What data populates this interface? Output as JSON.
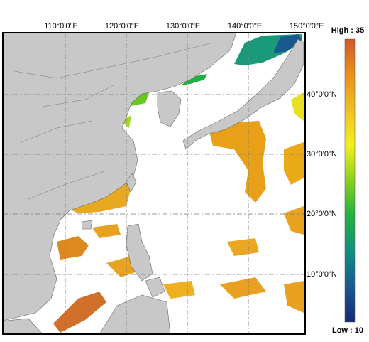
{
  "map": {
    "lon_labels": [
      "110°0'0\"E",
      "120°0'0\"E",
      "130°0'0\"E",
      "140°0'0\"E",
      "150°0'0\"E"
    ],
    "lat_labels": [
      "40°0'0\"N",
      "30°0'0\"N",
      "20°0'0\"N",
      "10°0'0\"N"
    ]
  },
  "legend": {
    "high_label": "High : 35",
    "low_label": "Low : 10",
    "colors": [
      "#d05a2c",
      "#e8901c",
      "#f0c020",
      "#f4f01c",
      "#88d020",
      "#22b040",
      "#109080",
      "#1a5890",
      "#142a78"
    ]
  }
}
